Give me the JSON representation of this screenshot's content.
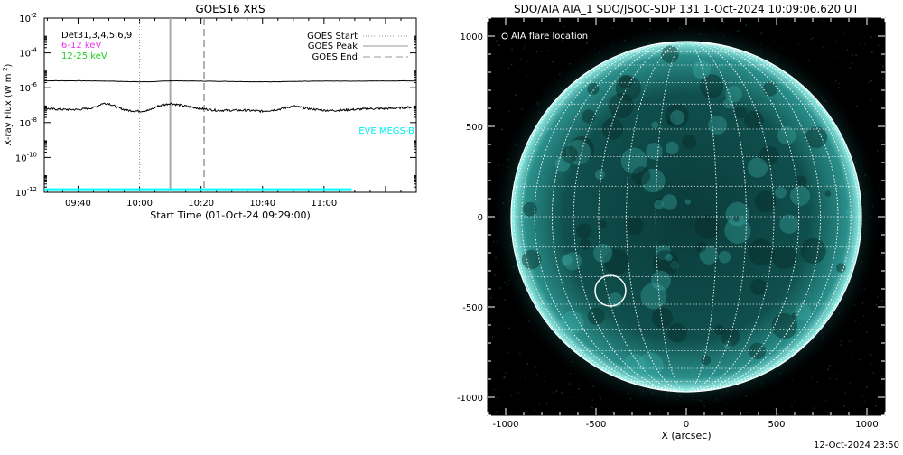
{
  "chart_data": [
    {
      "type": "line",
      "title": "GOES16 XRS",
      "xlabel": "Start Time (01-Oct-24 09:29:00)",
      "ylabel_main": "X-ray Flux (W m",
      "ylabel_sup": "-2",
      "ylabel_close": ")",
      "yscale": "log",
      "ylim_exp": [
        -12,
        -2
      ],
      "xlim_min": [
        29,
        150
      ],
      "y_tick_exponents": [
        -12,
        -10,
        -8,
        -6,
        -4,
        -2
      ],
      "x_ticks": [
        {
          "min": 40,
          "label": "09:40"
        },
        {
          "min": 60,
          "label": "10:00"
        },
        {
          "min": 80,
          "label": "10:20"
        },
        {
          "min": 100,
          "label": "10:40"
        },
        {
          "min": 120,
          "label": "11:00"
        }
      ],
      "channels_label": "Det31,3,4,5,6,9",
      "band_labels": [
        {
          "text": "6-12 keV",
          "color": "#ee33ee"
        },
        {
          "text": "12-25 keV",
          "color": "#22cc22"
        }
      ],
      "eve_label": "EVE MEGS-B",
      "eve_color": "#00ffff",
      "legend": [
        {
          "label": "GOES Start",
          "style": "dotted"
        },
        {
          "label": "GOES Peak",
          "style": "solid"
        },
        {
          "label": "GOES End",
          "style": "dashed"
        }
      ],
      "event_lines": {
        "start_min": 60,
        "peak_min": 70,
        "end_min": 81
      },
      "series": [
        {
          "name": "long",
          "color": "#000000",
          "x": [
            29,
            40,
            50,
            55,
            60,
            65,
            70,
            80,
            90,
            100,
            110,
            120,
            130,
            140,
            150
          ],
          "y_exp": [
            -5.6,
            -5.6,
            -5.62,
            -5.64,
            -5.66,
            -5.65,
            -5.6,
            -5.62,
            -5.64,
            -5.66,
            -5.64,
            -5.62,
            -5.62,
            -5.61,
            -5.6
          ]
        },
        {
          "name": "short",
          "color": "#000000",
          "x": [
            29,
            35,
            40,
            45,
            48,
            50,
            53,
            56,
            60,
            63,
            66,
            70,
            75,
            80,
            85,
            90,
            95,
            100,
            105,
            110,
            115,
            120,
            125,
            130,
            135,
            140,
            145,
            150
          ],
          "y_exp": [
            -7.2,
            -7.25,
            -7.25,
            -7.15,
            -6.9,
            -6.9,
            -7.15,
            -7.3,
            -7.35,
            -7.3,
            -7.05,
            -6.9,
            -7.05,
            -7.2,
            -7.3,
            -7.3,
            -7.3,
            -7.35,
            -7.25,
            -7.05,
            -7.2,
            -7.3,
            -7.3,
            -7.25,
            -7.2,
            -7.2,
            -7.15,
            -7.1
          ]
        },
        {
          "name": "EVE MEGS-B",
          "color": "#00ffff",
          "x": [
            29,
            129
          ],
          "y_exp": [
            -11.85,
            -11.85
          ]
        }
      ]
    },
    {
      "type": "image",
      "title": "SDO/AIA AIA_1 SDO/JSOC-SDP 131  1-Oct-2024 10:09:06.620 UT",
      "xlabel": "X (arcsec)",
      "xlim": [
        -1100,
        1100
      ],
      "ylim": [
        -1100,
        1100
      ],
      "x_ticks": [
        -1000,
        -500,
        0,
        500,
        1000
      ],
      "y_ticks": [
        -1000,
        -500,
        0,
        500,
        1000
      ],
      "solar_radius_arcsec": 970,
      "flare_location_label": "AIA flare location",
      "flare_location_arcsec": [
        -420,
        -410
      ],
      "flare_circle_radius_arcsec": 85
    }
  ],
  "footer_timestamp": "12-Oct-2024 23:50"
}
